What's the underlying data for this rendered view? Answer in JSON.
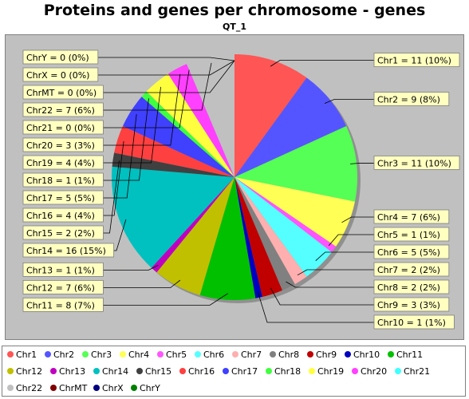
{
  "chart_data": {
    "type": "pie",
    "title": "Proteins and genes per chromosome - genes",
    "subtitle": "QT_1",
    "slices": [
      {
        "name": "Chr1",
        "value": 11,
        "label": "Chr1 = 11 (10%)",
        "color": "#ff5555"
      },
      {
        "name": "Chr2",
        "value": 9,
        "label": "Chr2 = 9 (8%)",
        "color": "#5555ff"
      },
      {
        "name": "Chr3",
        "value": 11,
        "label": "Chr3 = 11 (10%)",
        "color": "#55ff55"
      },
      {
        "name": "Chr4",
        "value": 7,
        "label": "Chr4 = 7 (6%)",
        "color": "#ffff55"
      },
      {
        "name": "Chr5",
        "value": 1,
        "label": "Chr5 = 1 (1%)",
        "color": "#ff55ff"
      },
      {
        "name": "Chr6",
        "value": 5,
        "label": "Chr6 = 5 (5%)",
        "color": "#55ffff"
      },
      {
        "name": "Chr7",
        "value": 2,
        "label": "Chr7 = 2 (2%)",
        "color": "#ffafaf"
      },
      {
        "name": "Chr8",
        "value": 2,
        "label": "Chr8 = 2 (2%)",
        "color": "#808080"
      },
      {
        "name": "Chr9",
        "value": 3,
        "label": "Chr9 = 3 (3%)",
        "color": "#c00000"
      },
      {
        "name": "Chr10",
        "value": 1,
        "label": "Chr10 = 1 (1%)",
        "color": "#0000c0"
      },
      {
        "name": "Chr11",
        "value": 8,
        "label": "Chr11 = 8 (7%)",
        "color": "#00c000"
      },
      {
        "name": "Chr12",
        "value": 7,
        "label": "Chr12 = 7 (6%)",
        "color": "#c0c000"
      },
      {
        "name": "Chr13",
        "value": 1,
        "label": "Chr13 = 1 (1%)",
        "color": "#c000c0"
      },
      {
        "name": "Chr14",
        "value": 16,
        "label": "Chr14 = 16 (15%)",
        "color": "#00c0c0"
      },
      {
        "name": "Chr15",
        "value": 2,
        "label": "Chr15 = 2 (2%)",
        "color": "#404040"
      },
      {
        "name": "Chr16",
        "value": 4,
        "label": "Chr16 = 4 (4%)",
        "color": "#ff4040"
      },
      {
        "name": "Chr17",
        "value": 5,
        "label": "Chr17 = 5 (5%)",
        "color": "#4040ff"
      },
      {
        "name": "Chr18",
        "value": 1,
        "label": "Chr18 = 1 (1%)",
        "color": "#40ff40"
      },
      {
        "name": "Chr19",
        "value": 4,
        "label": "Chr19 = 4 (4%)",
        "color": "#ffff40"
      },
      {
        "name": "Chr20",
        "value": 3,
        "label": "Chr20 = 3 (3%)",
        "color": "#ff40ff"
      },
      {
        "name": "Chr21",
        "value": 0,
        "label": "Chr21 = 0 (0%)",
        "color": "#40ffff"
      },
      {
        "name": "Chr22",
        "value": 7,
        "label": "Chr22 = 7 (6%)",
        "color": "#c0c0c0"
      },
      {
        "name": "ChrMT",
        "value": 0,
        "label": "ChrMT = 0 (0%)",
        "color": "#800000"
      },
      {
        "name": "ChrX",
        "value": 0,
        "label": "ChrX = 0 (0%)",
        "color": "#000080"
      },
      {
        "name": "ChrY",
        "value": 0,
        "label": "ChrY = 0 (0%)",
        "color": "#008000"
      }
    ],
    "legend": [
      "Chr1",
      "Chr2",
      "Chr3",
      "Chr4",
      "Chr5",
      "Chr6",
      "Chr7",
      "Chr8",
      "Chr9",
      "Chr10",
      "Chr11",
      "Chr12",
      "Chr13",
      "Chr14",
      "Chr15",
      "Chr16",
      "Chr17",
      "Chr18",
      "Chr19",
      "Chr20",
      "Chr21",
      "Chr22",
      "ChrMT",
      "ChrX",
      "ChrY"
    ],
    "legend_placement": "bottom",
    "start_angle": "12 o'clock, clockwise",
    "plot_background": "#c0c0c0"
  }
}
